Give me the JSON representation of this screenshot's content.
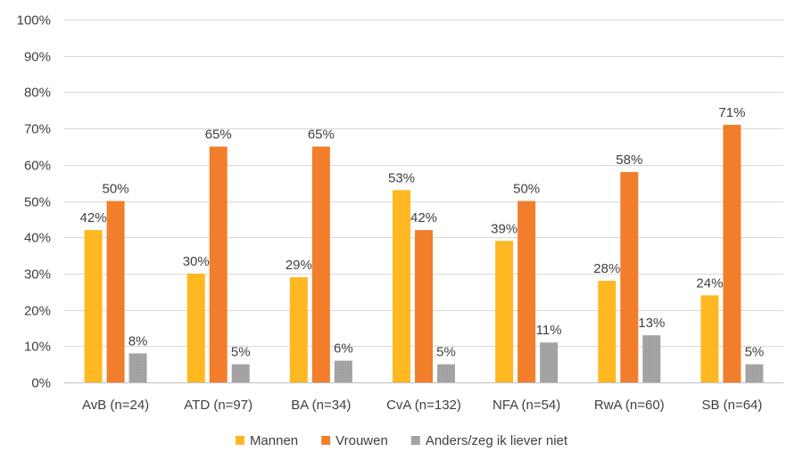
{
  "chart_data": {
    "type": "bar",
    "title": "",
    "xlabel": "",
    "ylabel": "",
    "ylim": [
      0,
      100
    ],
    "y_ticks": [
      "0%",
      "10%",
      "20%",
      "30%",
      "40%",
      "50%",
      "60%",
      "70%",
      "80%",
      "90%",
      "100%"
    ],
    "grid": true,
    "legend_position": "bottom",
    "categories": [
      "AvB (n=24)",
      "ATD (n=97)",
      "BA (n=34)",
      "CvA (n=132)",
      "NFA (n=54)",
      "RwA (n=60)",
      "SB (n=64)"
    ],
    "series": [
      {
        "name": "Mannen",
        "color": "#FFB822",
        "values": [
          42,
          30,
          29,
          53,
          39,
          28,
          24
        ],
        "labels": [
          "42%",
          "30%",
          "29%",
          "53%",
          "39%",
          "28%",
          "24%"
        ]
      },
      {
        "name": "Vrouwen",
        "color": "#F27E2B",
        "values": [
          50,
          65,
          65,
          42,
          50,
          58,
          71
        ],
        "labels": [
          "50%",
          "65%",
          "65%",
          "42%",
          "50%",
          "58%",
          "71%"
        ]
      },
      {
        "name": "Anders/zeg ik liever niet",
        "color": "#A5A5A5",
        "values": [
          8,
          5,
          6,
          5,
          11,
          13,
          5
        ],
        "labels": [
          "8%",
          "5%",
          "6%",
          "5%",
          "11%",
          "13%",
          "5%"
        ]
      }
    ]
  }
}
